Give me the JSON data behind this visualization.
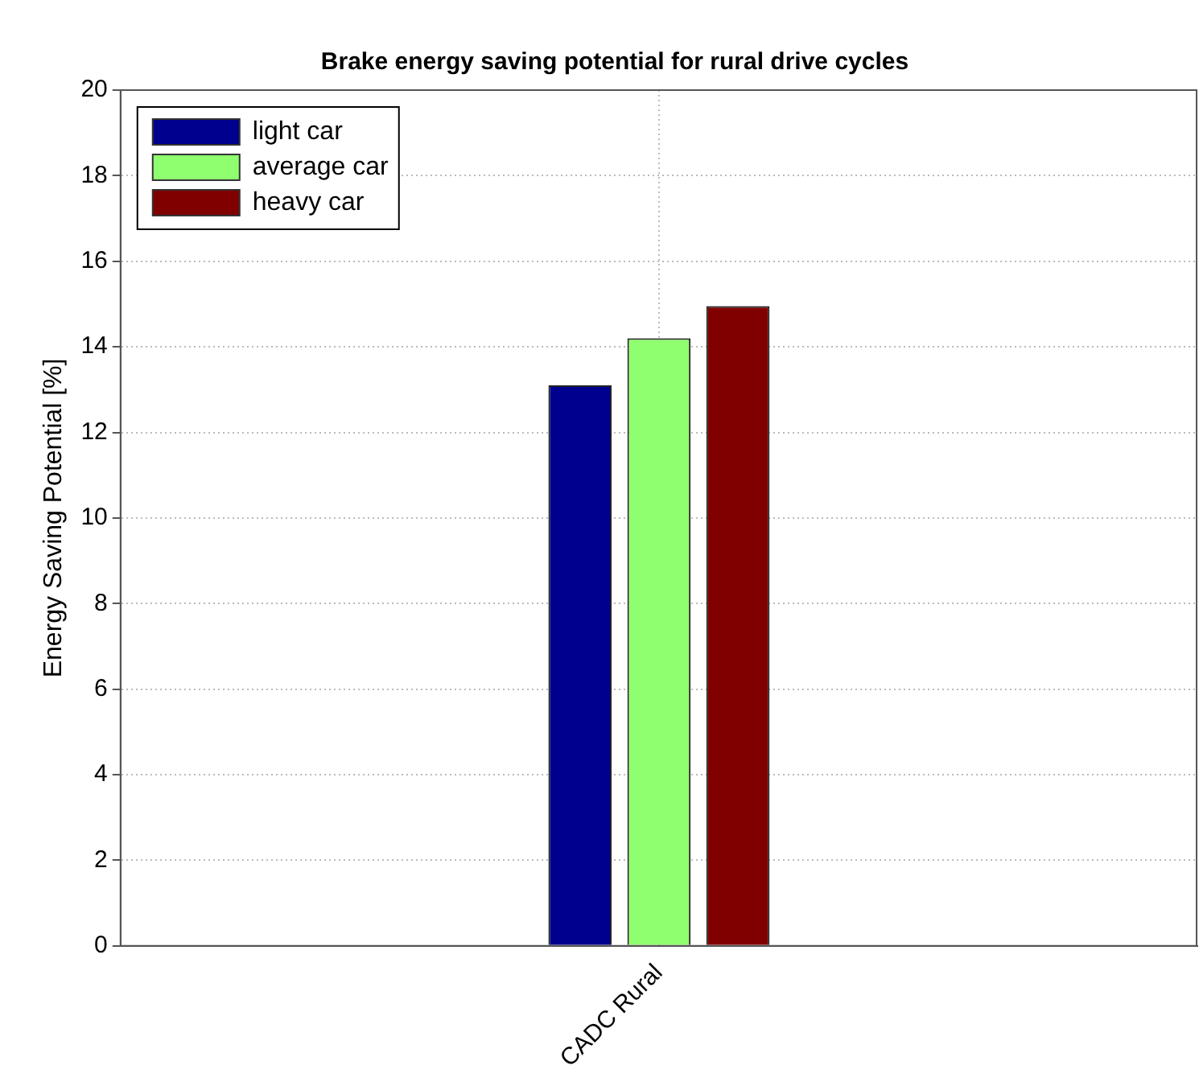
{
  "chart_data": {
    "type": "bar",
    "title": "Brake energy saving potential for rural drive cycles",
    "ylabel": "Energy Saving Potential [%]",
    "categories": [
      "CADC Rural"
    ],
    "series": [
      {
        "name": "light car",
        "color": "#00008f",
        "values": [
          13.1
        ]
      },
      {
        "name": "average car",
        "color": "#8fff6f",
        "values": [
          14.2
        ]
      },
      {
        "name": "heavy car",
        "color": "#800000",
        "values": [
          14.95
        ]
      }
    ],
    "ylim": [
      0,
      20
    ],
    "yticks": [
      0,
      2,
      4,
      6,
      8,
      10,
      12,
      14,
      16,
      18,
      20
    ],
    "grid": true,
    "legend": "top left"
  }
}
